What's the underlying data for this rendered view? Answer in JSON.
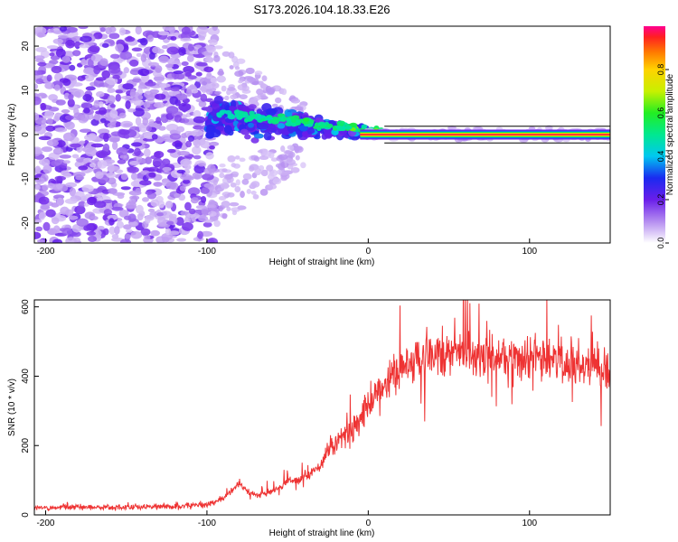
{
  "title": "S173.2026.104.18.33.E26",
  "chart_data": [
    {
      "type": "heatmap",
      "name": "spectrogram",
      "xlabel": "Height of straight line (km)",
      "ylabel": "Frequency (Hz)",
      "xlim": [
        -207,
        150
      ],
      "ylim": [
        -24.5,
        24.5
      ],
      "xticks": [
        -200,
        -100,
        0,
        100
      ],
      "xtick_labels": [
        "-200",
        "-100",
        "0",
        "100"
      ],
      "yticks": [
        -20,
        -10,
        0,
        10,
        20
      ],
      "ytick_labels": [
        "-20",
        "-10",
        "0",
        "10",
        "20"
      ],
      "grid": false,
      "regions": [
        {
          "label": "diffuse noise",
          "x_range": [
            -207,
            -100
          ],
          "freq_range": [
            -24.5,
            24.5
          ],
          "amplitude": 0.12
        },
        {
          "label": "converging signal",
          "x_range": [
            -100,
            0
          ],
          "freq_start": [
            -2,
            12
          ],
          "freq_end": [
            -1,
            2
          ],
          "amplitude": 0.3
        },
        {
          "label": "steady carrier",
          "x_range": [
            0,
            150
          ],
          "frequency": 0,
          "amplitude": 0.95
        }
      ],
      "colorbar": {
        "label": "Normalized spectral amplitude",
        "range": [
          0,
          1
        ],
        "ticks": [
          0,
          0.2,
          0.4,
          0.6,
          0.8
        ],
        "tick_labels": [
          "0.0",
          "0.2",
          "0.4",
          "0.6",
          "0.8"
        ]
      }
    },
    {
      "type": "line",
      "name": "snr",
      "xlabel": "Height of straight line (km)",
      "ylabel": "SNR (10 * v/v)",
      "xlim": [
        -207,
        150
      ],
      "ylim": [
        0,
        620
      ],
      "xticks": [
        -200,
        -100,
        0,
        100
      ],
      "xtick_labels": [
        "-200",
        "-100",
        "0",
        "100"
      ],
      "yticks": [
        0,
        200,
        400,
        600
      ],
      "ytick_labels": [
        "0",
        "200",
        "400",
        "600"
      ],
      "color": "#ee3333",
      "series": [
        {
          "name": "SNR",
          "x": [
            -207,
            -180,
            -150,
            -120,
            -100,
            -90,
            -85,
            -80,
            -75,
            -70,
            -65,
            -60,
            -55,
            -50,
            -45,
            -40,
            -35,
            -30,
            -25,
            -20,
            -15,
            -10,
            -5,
            0,
            5,
            10,
            15,
            20,
            25,
            30,
            40,
            50,
            60,
            70,
            80,
            90,
            100,
            110,
            120,
            130,
            140,
            150
          ],
          "values": [
            20,
            22,
            22,
            25,
            30,
            45,
            70,
            95,
            70,
            55,
            60,
            70,
            80,
            95,
            100,
            110,
            120,
            140,
            190,
            210,
            220,
            240,
            270,
            320,
            350,
            380,
            400,
            420,
            440,
            450,
            460,
            470,
            470,
            460,
            460,
            455,
            450,
            450,
            440,
            440,
            430,
            430
          ]
        }
      ]
    }
  ]
}
